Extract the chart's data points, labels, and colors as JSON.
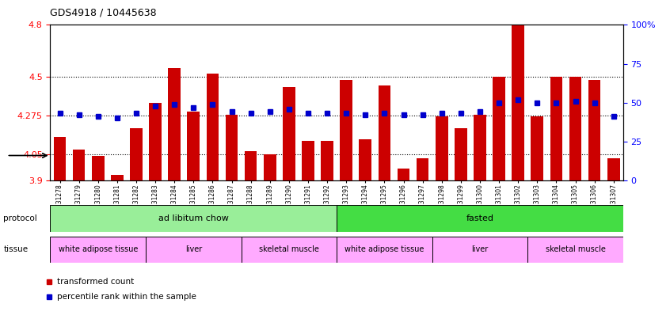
{
  "title": "GDS4918 / 10445638",
  "samples": [
    "GSM1131278",
    "GSM1131279",
    "GSM1131280",
    "GSM1131281",
    "GSM1131282",
    "GSM1131283",
    "GSM1131284",
    "GSM1131285",
    "GSM1131286",
    "GSM1131287",
    "GSM1131288",
    "GSM1131289",
    "GSM1131290",
    "GSM1131291",
    "GSM1131292",
    "GSM1131293",
    "GSM1131294",
    "GSM1131295",
    "GSM1131296",
    "GSM1131297",
    "GSM1131298",
    "GSM1131299",
    "GSM1131300",
    "GSM1131301",
    "GSM1131302",
    "GSM1131303",
    "GSM1131304",
    "GSM1131305",
    "GSM1131306",
    "GSM1131307"
  ],
  "bar_values": [
    4.15,
    4.08,
    4.04,
    3.93,
    4.2,
    4.35,
    4.55,
    4.3,
    4.52,
    4.28,
    4.07,
    4.05,
    4.44,
    4.13,
    4.13,
    4.48,
    4.14,
    4.45,
    3.97,
    4.03,
    4.27,
    4.2,
    4.28,
    4.5,
    4.8,
    4.27,
    4.5,
    4.5,
    4.48,
    4.03
  ],
  "percentile_values": [
    43,
    42,
    41,
    40,
    43,
    48,
    49,
    47,
    49,
    44,
    43,
    44,
    46,
    43,
    43,
    43,
    42,
    43,
    42,
    42,
    43,
    43,
    44,
    50,
    52,
    50,
    50,
    51,
    50,
    41
  ],
  "ymin": 3.9,
  "ymax": 4.8,
  "yticks": [
    3.9,
    4.05,
    4.275,
    4.5,
    4.8
  ],
  "ytick_labels": [
    "3.9",
    "4.05",
    "4.275",
    "4.5",
    "4.8"
  ],
  "right_yticks": [
    0,
    25,
    50,
    75,
    100
  ],
  "right_ytick_labels": [
    "0",
    "25",
    "50",
    "75",
    "100%"
  ],
  "bar_color": "#cc0000",
  "dot_color": "#0000cc",
  "protocol_groups": [
    {
      "label": "ad libitum chow",
      "start": 0,
      "end": 14,
      "color": "#99ee99"
    },
    {
      "label": "fasted",
      "start": 15,
      "end": 29,
      "color": "#44dd44"
    }
  ],
  "tissue_groups": [
    {
      "label": "white adipose tissue",
      "start": 0,
      "end": 4,
      "color": "#ffaaff"
    },
    {
      "label": "liver",
      "start": 5,
      "end": 9,
      "color": "#ffaaff"
    },
    {
      "label": "skeletal muscle",
      "start": 10,
      "end": 14,
      "color": "#ffaaff"
    },
    {
      "label": "white adipose tissue",
      "start": 15,
      "end": 19,
      "color": "#ffaaff"
    },
    {
      "label": "liver",
      "start": 20,
      "end": 24,
      "color": "#ffaaff"
    },
    {
      "label": "skeletal muscle",
      "start": 25,
      "end": 29,
      "color": "#ffaaff"
    }
  ],
  "legend_items": [
    {
      "label": "transformed count",
      "color": "#cc0000"
    },
    {
      "label": "percentile rank within the sample",
      "color": "#0000cc"
    }
  ],
  "protocol_label": "protocol",
  "tissue_label": "tissue"
}
